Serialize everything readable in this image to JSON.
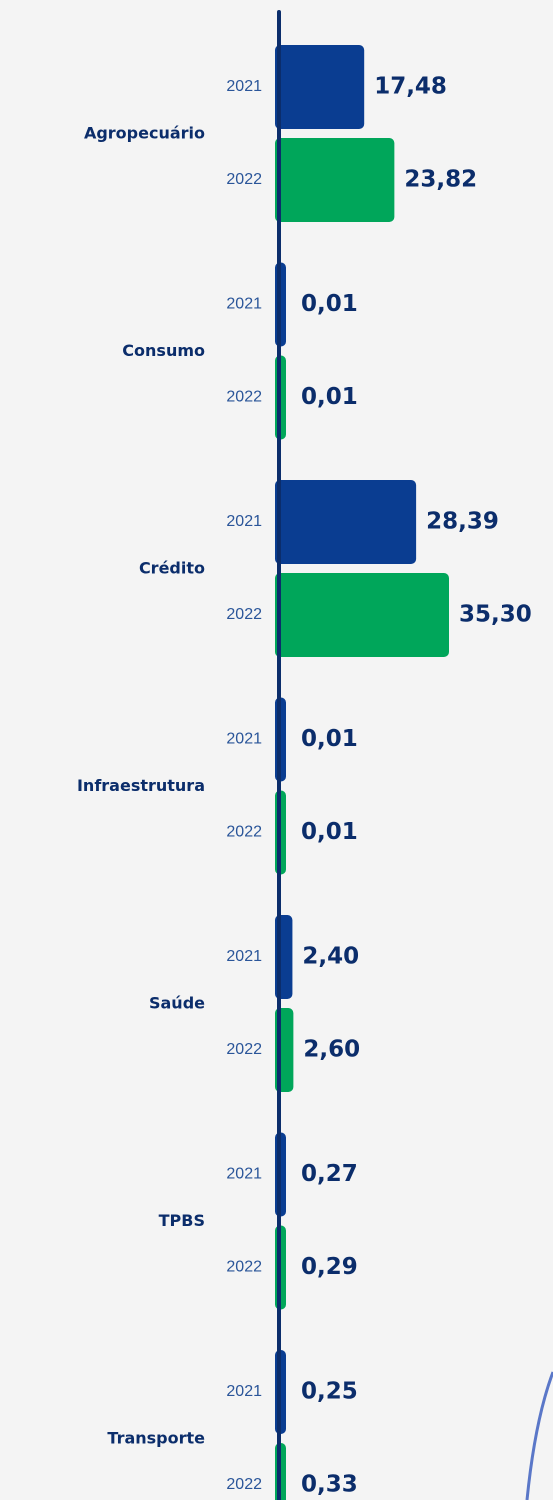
{
  "chart_data": {
    "type": "hbar",
    "categories": [
      "Agropecuário",
      "Consumo",
      "Crédito",
      "Infraestrutura",
      "Saúde",
      "TPBS",
      "Transporte"
    ],
    "series": [
      {
        "name": "2021",
        "color": "#0a3d91",
        "values": [
          17.48,
          0.01,
          28.39,
          0.01,
          2.4,
          0.27,
          0.25
        ],
        "value_labels": [
          "17,48",
          "0,01",
          "28,39",
          "0,01",
          "2,40",
          "0,27",
          "0,25"
        ]
      },
      {
        "name": "2022",
        "color": "#00a65a",
        "values": [
          23.82,
          0.01,
          35.3,
          0.01,
          2.6,
          0.29,
          0.33
        ],
        "value_labels": [
          "23,82",
          "0,01",
          "35,30",
          "0,01",
          "2,60",
          "0,29",
          "0,33"
        ]
      }
    ]
  }
}
